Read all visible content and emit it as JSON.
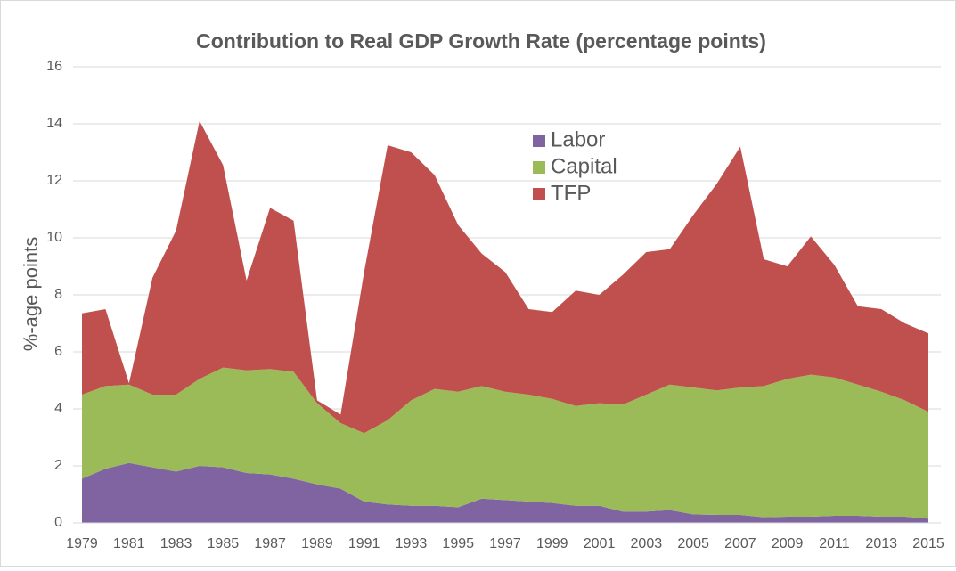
{
  "chart_data": {
    "type": "stacked_area",
    "title": "Contribution to Real GDP Growth Rate (percentage points)",
    "y_label": "%-age points",
    "categories": [
      "1979",
      null,
      "1981",
      null,
      "1983",
      null,
      "1985",
      null,
      "1987",
      null,
      "1989",
      null,
      "1991",
      null,
      "1993",
      null,
      "1995",
      null,
      "1997",
      null,
      "1999",
      null,
      "2001",
      null,
      "2003",
      null,
      "2005",
      null,
      "2007",
      null,
      "2009",
      null,
      "2011",
      null,
      "2013",
      null,
      "2015"
    ],
    "series": [
      {
        "name": "Labor",
        "color": "#8064a2",
        "values": [
          1.55,
          1.9,
          2.1,
          1.95,
          1.8,
          2.0,
          1.95,
          1.75,
          1.7,
          1.55,
          1.35,
          1.2,
          0.75,
          0.65,
          0.6,
          0.6,
          0.55,
          0.85,
          0.8,
          0.75,
          0.7,
          0.6,
          0.6,
          0.4,
          0.4,
          0.45,
          0.3,
          0.28,
          0.28,
          0.2,
          0.22,
          0.22,
          0.25,
          0.25,
          0.22,
          0.22,
          0.15
        ]
      },
      {
        "name": "Capital",
        "color": "#9bbb59",
        "values": [
          2.95,
          2.9,
          2.75,
          2.55,
          2.7,
          3.05,
          3.5,
          3.6,
          3.7,
          3.75,
          2.85,
          2.3,
          2.4,
          2.95,
          3.7,
          4.1,
          4.05,
          3.95,
          3.8,
          3.75,
          3.65,
          3.5,
          3.6,
          3.75,
          4.1,
          4.4,
          4.45,
          4.37,
          4.47,
          4.6,
          4.83,
          4.98,
          4.85,
          4.6,
          4.38,
          4.08,
          3.75
        ]
      },
      {
        "name": "TFP",
        "color": "#c0504d",
        "values": [
          2.85,
          2.7,
          0.05,
          4.1,
          5.75,
          9.05,
          7.1,
          3.15,
          5.65,
          5.3,
          0.1,
          0.3,
          5.65,
          9.65,
          8.7,
          7.5,
          5.85,
          4.65,
          4.2,
          3.0,
          3.05,
          4.05,
          3.8,
          4.55,
          5.0,
          4.75,
          6.05,
          7.25,
          8.45,
          4.45,
          3.95,
          4.85,
          3.95,
          2.75,
          2.9,
          2.7,
          2.75
        ]
      }
    ],
    "ylim": [
      0,
      16
    ],
    "yticks": [
      0,
      2,
      4,
      6,
      8,
      10,
      12,
      14,
      16
    ],
    "grid": true
  }
}
